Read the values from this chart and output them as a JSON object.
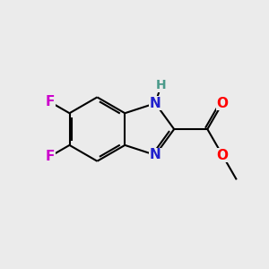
{
  "background_color": "#ebebeb",
  "bond_color": "#000000",
  "bond_width": 1.5,
  "atom_colors": {
    "N": "#2020cc",
    "O": "#ff0000",
    "F": "#cc00cc",
    "H": "#4a9a8a",
    "C": "#000000"
  },
  "font_size_atom": 11,
  "font_size_H": 10
}
